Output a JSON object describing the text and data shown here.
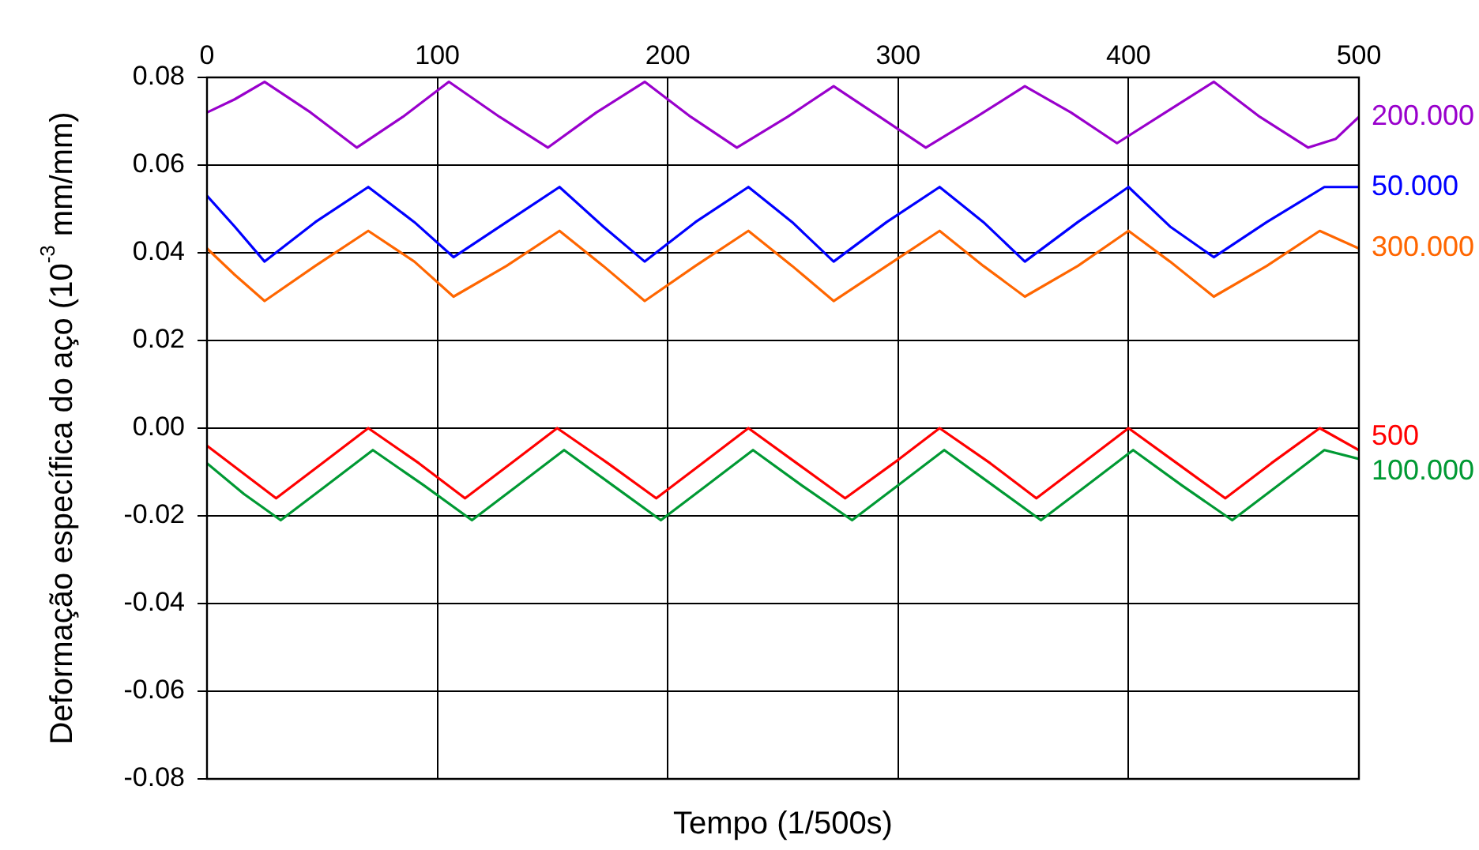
{
  "chart_data": {
    "type": "line",
    "xlabel": "Tempo (1/500s)",
    "ylabel": "Deformação específica do aço (10$^{-3}$ mm/mm)",
    "xlim": [
      0,
      500
    ],
    "xticks": [
      0,
      100,
      200,
      300,
      400,
      500
    ],
    "ylim": [
      -0.08,
      0.08
    ],
    "yticks": [
      {
        "value": -0.08,
        "label": "-0.08"
      },
      {
        "value": -0.06,
        "label": "-0.06"
      },
      {
        "value": -0.04,
        "label": "-0.04"
      },
      {
        "value": -0.02,
        "label": "-0.02"
      },
      {
        "value": 0,
        "label": "0.00"
      },
      {
        "value": 0.02,
        "label": "0.02"
      },
      {
        "value": 0.04,
        "label": "0.04"
      },
      {
        "value": 0.06,
        "label": "0.06"
      },
      {
        "value": 0.08,
        "label": "0.08"
      }
    ],
    "grid": true,
    "legend": false,
    "marker": "none",
    "line_style": "solid",
    "series": [
      {
        "name": "200.000",
        "color": "#9900cc",
        "x": [
          0,
          12,
          25,
          45,
          65,
          85,
          105,
          127,
          148,
          169,
          190,
          210,
          230,
          252,
          272,
          292,
          312,
          334,
          355,
          375,
          395,
          416,
          437,
          457,
          478,
          490,
          500
        ],
        "values": [
          0.072,
          0.075,
          0.079,
          0.072,
          0.064,
          0.071,
          0.079,
          0.071,
          0.064,
          0.072,
          0.079,
          0.071,
          0.064,
          0.071,
          0.078,
          0.071,
          0.064,
          0.071,
          0.078,
          0.072,
          0.065,
          0.072,
          0.079,
          0.071,
          0.064,
          0.066,
          0.071
        ]
      },
      {
        "name": "50.000",
        "color": "#0000ff",
        "x": [
          0,
          12,
          25,
          47,
          70,
          90,
          107,
          130,
          153,
          172,
          190,
          212,
          235,
          254,
          272,
          295,
          318,
          337,
          355,
          378,
          400,
          418,
          437,
          460,
          485,
          500
        ],
        "values": [
          0.053,
          0.046,
          0.038,
          0.047,
          0.055,
          0.047,
          0.039,
          0.047,
          0.055,
          0.046,
          0.038,
          0.047,
          0.055,
          0.047,
          0.038,
          0.047,
          0.055,
          0.047,
          0.038,
          0.047,
          0.055,
          0.046,
          0.039,
          0.047,
          0.055,
          0.055
        ]
      },
      {
        "name": "300.000",
        "color": "#ff6600",
        "x": [
          0,
          12,
          25,
          47,
          70,
          90,
          107,
          130,
          153,
          172,
          190,
          212,
          235,
          254,
          272,
          295,
          318,
          337,
          355,
          378,
          400,
          418,
          437,
          460,
          483,
          500
        ],
        "values": [
          0.041,
          0.035,
          0.029,
          0.037,
          0.045,
          0.038,
          0.03,
          0.037,
          0.045,
          0.037,
          0.029,
          0.037,
          0.045,
          0.037,
          0.029,
          0.037,
          0.045,
          0.037,
          0.03,
          0.037,
          0.045,
          0.038,
          0.03,
          0.037,
          0.045,
          0.041
        ]
      },
      {
        "name": "500",
        "color": "#ff0000",
        "x": [
          0,
          15,
          30,
          50,
          70,
          92,
          112,
          132,
          152,
          174,
          195,
          215,
          235,
          256,
          277,
          298,
          318,
          340,
          360,
          380,
          400,
          421,
          442,
          462,
          483,
          500
        ],
        "values": [
          -0.004,
          -0.01,
          -0.016,
          -0.008,
          0.0,
          -0.008,
          -0.016,
          -0.008,
          0.0,
          -0.008,
          -0.016,
          -0.008,
          0.0,
          -0.008,
          -0.016,
          -0.008,
          0.0,
          -0.008,
          -0.016,
          -0.008,
          0.0,
          -0.008,
          -0.016,
          -0.008,
          0.0,
          -0.005
        ]
      },
      {
        "name": "100.000",
        "color": "#009933",
        "x": [
          0,
          16,
          32,
          52,
          72,
          94,
          115,
          135,
          155,
          176,
          197,
          217,
          237,
          258,
          280,
          300,
          320,
          341,
          362,
          382,
          402,
          423,
          445,
          465,
          485,
          500
        ],
        "values": [
          -0.008,
          -0.015,
          -0.021,
          -0.013,
          -0.005,
          -0.013,
          -0.021,
          -0.013,
          -0.005,
          -0.013,
          -0.021,
          -0.013,
          -0.005,
          -0.013,
          -0.021,
          -0.013,
          -0.005,
          -0.013,
          -0.021,
          -0.013,
          -0.005,
          -0.013,
          -0.021,
          -0.013,
          -0.005,
          -0.007
        ]
      }
    ]
  }
}
